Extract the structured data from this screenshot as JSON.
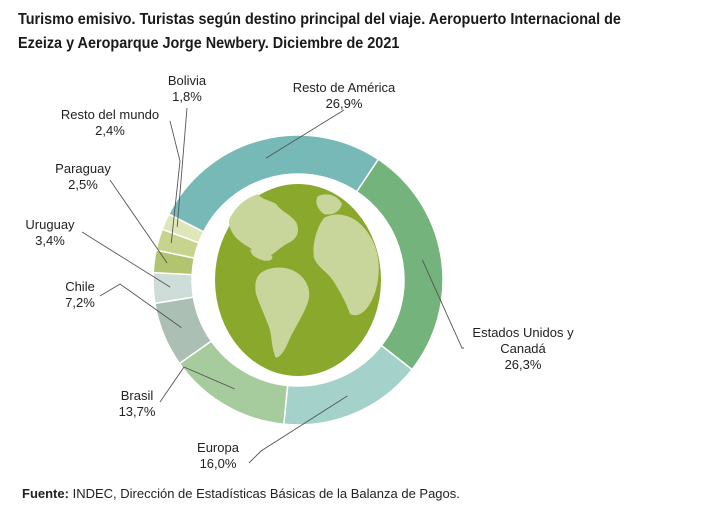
{
  "title": "Turismo emisivo. Turistas según destino principal del viaje. Aeropuerto Internacional de Ezeiza y Aeroparque Jorge Newbery. Diciembre de 2021",
  "footer": {
    "source_label": "Fuente:",
    "source_text": "INDEC, Dirección de Estadísticas Básicas de la Balanza de Pagos."
  },
  "chart_data": {
    "type": "pie",
    "title": "Turismo emisivo. Turistas según destino principal del viaje. Aeropuerto Internacional de Ezeiza y Aeroparque Jorge Newbery. Diciembre de 2021",
    "unit": "%",
    "donut": true,
    "center_image": "globe-icon",
    "slices": [
      {
        "label": "Resto de América",
        "value": 26.9,
        "value_text": "26,9%",
        "color": "#76b9b7"
      },
      {
        "label": "Estados Unidos y Canadá",
        "label_lines": [
          "Estados Unidos y",
          "Canadá"
        ],
        "value": 26.3,
        "value_text": "26,3%",
        "color": "#75b37c"
      },
      {
        "label": "Europa",
        "value": 16.0,
        "value_text": "16,0%",
        "color": "#a5d1cb"
      },
      {
        "label": "Brasil",
        "value": 13.7,
        "value_text": "13,7%",
        "color": "#a6cc9e"
      },
      {
        "label": "Chile",
        "value": 7.2,
        "value_text": "7,2%",
        "color": "#abbfb4"
      },
      {
        "label": "Uruguay",
        "value": 3.4,
        "value_text": "3,4%",
        "color": "#cfddd8"
      },
      {
        "label": "Paraguay",
        "value": 2.5,
        "value_text": "2,5%",
        "color": "#b2c46f"
      },
      {
        "label": "Resto del mundo",
        "value": 2.4,
        "value_text": "2,4%",
        "color": "#c7d48e"
      },
      {
        "label": "Bolivia",
        "value": 1.8,
        "value_text": "1,8%",
        "color": "#dfe6ba"
      }
    ]
  }
}
